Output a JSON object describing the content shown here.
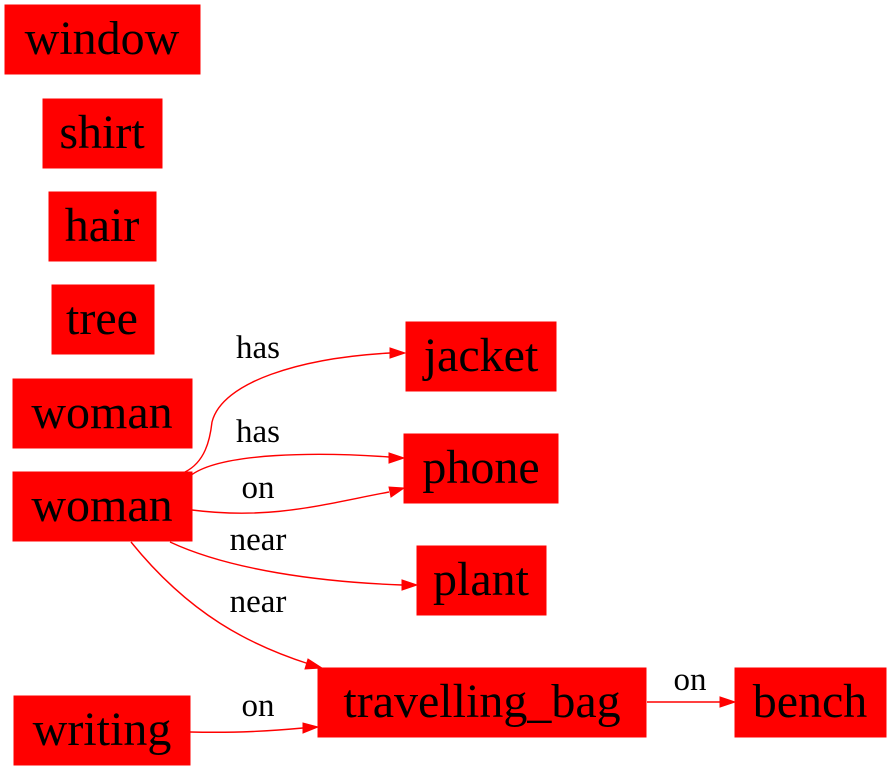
{
  "colors": {
    "node_fill": "#ff0000",
    "edge_stroke": "#ff0000",
    "text": "#000000",
    "background": "#ffffff"
  },
  "nodes": {
    "window": "window",
    "shirt": "shirt",
    "hair": "hair",
    "tree": "tree",
    "woman_a": "woman",
    "woman_b": "woman",
    "jacket": "jacket",
    "phone": "phone",
    "plant": "plant",
    "travelling_bag": "travelling_bag",
    "writing": "writing",
    "bench": "bench"
  },
  "edges": {
    "woman_has_jacket": "has",
    "woman_has_phone": "has",
    "woman_on_phone": "on",
    "woman_near_plant": "near",
    "woman_near_bag": "near",
    "writing_on_bag": "on",
    "bag_on_bench": "on"
  }
}
